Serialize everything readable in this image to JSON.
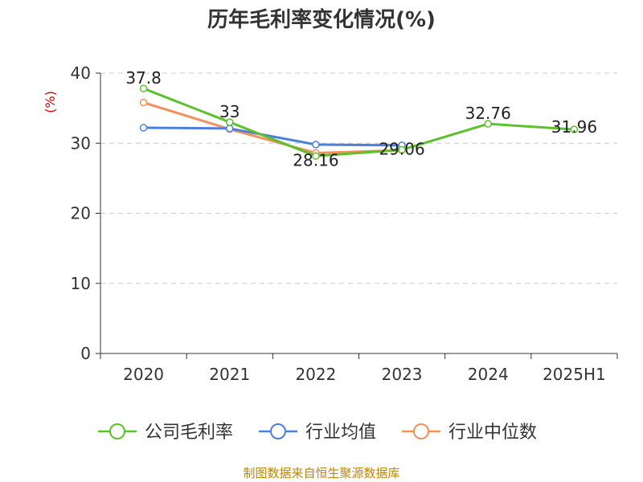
{
  "chart_data": {
    "type": "line",
    "title": "历年毛利率变化情况(%)",
    "ylabel": "(%)",
    "categories": [
      "2020",
      "2021",
      "2022",
      "2023",
      "2024",
      "2025H1"
    ],
    "ylim": [
      0,
      40
    ],
    "yticks": [
      0,
      10,
      20,
      30,
      40
    ],
    "grid": true,
    "legend_position": "bottom",
    "series": [
      {
        "name": "公司毛利率",
        "values": [
          37.8,
          33,
          28.16,
          29.06,
          32.76,
          31.96
        ],
        "labels": [
          "37.8",
          "33",
          "28.16",
          "29.06",
          "32.76",
          "31.96"
        ],
        "color": "#5cc12c"
      },
      {
        "name": "行业均值",
        "values": [
          32.2,
          32.1,
          29.8,
          29.7,
          null,
          null
        ],
        "color": "#4f7fdc"
      },
      {
        "name": "行业中位数",
        "values": [
          35.8,
          32.0,
          28.6,
          29.0,
          null,
          null
        ],
        "color": "#f4905a"
      }
    ]
  },
  "footer": {
    "source": "制图数据来自恒生聚源数据库"
  }
}
